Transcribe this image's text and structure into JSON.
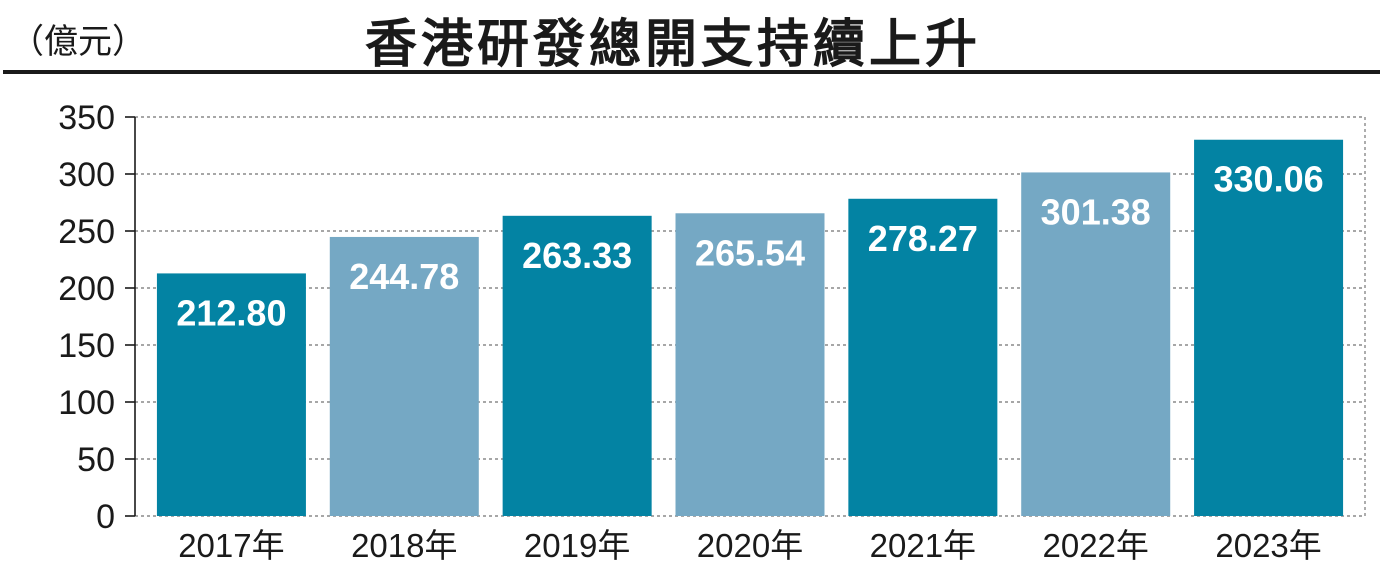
{
  "chart_data": {
    "type": "bar",
    "title": "香港研發總開支持續上升",
    "unit_label": "（億元）",
    "categories": [
      "2017年",
      "2018年",
      "2019年",
      "2020年",
      "2021年",
      "2022年",
      "2023年"
    ],
    "values": [
      212.8,
      244.78,
      263.33,
      265.54,
      278.27,
      301.38,
      330.06
    ],
    "value_labels": [
      "212.80",
      "244.78",
      "263.33",
      "265.54",
      "278.27",
      "301.38",
      "330.06"
    ],
    "ylim": [
      0,
      350
    ],
    "yticks": [
      "0",
      "50",
      "100",
      "150",
      "200",
      "250",
      "300",
      "350"
    ],
    "grid": true,
    "bar_colors": [
      "#0383a3",
      "#75a8c4",
      "#0383a3",
      "#75a8c4",
      "#0383a3",
      "#75a8c4",
      "#0383a3"
    ]
  }
}
